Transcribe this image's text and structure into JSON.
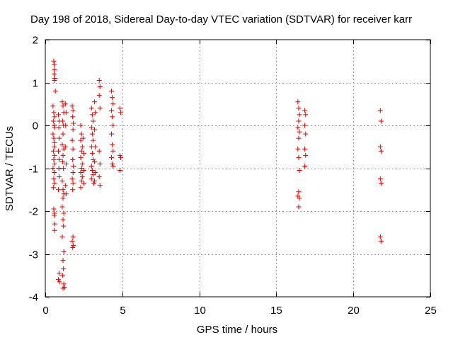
{
  "chart_data": {
    "type": "scatter",
    "title": "Day 198 of 2018, Sidereal Day-to-day VTEC variation (SDTVAR) for receiver karr",
    "xlabel": "GPS time / hours",
    "ylabel": "SDTVAR / TECUs",
    "xlim": [
      0,
      25
    ],
    "ylim": [
      -4,
      2
    ],
    "xticks": [
      0,
      5,
      10,
      15,
      20,
      25
    ],
    "yticks": [
      -4,
      -3,
      -2,
      -1,
      0,
      1,
      2
    ],
    "xtick_labels": [
      "0",
      "5",
      "10",
      "15",
      "20",
      "25"
    ],
    "ytick_labels": [
      "-4",
      "-3",
      "-2",
      "-1",
      "0",
      "1",
      "2"
    ],
    "grid": true,
    "marker": "+",
    "color": "#e00000",
    "series": [
      {
        "name": "SDTVAR",
        "points": [
          [
            0.55,
            1.5
          ],
          [
            0.58,
            1.42
          ],
          [
            0.6,
            1.3
          ],
          [
            0.57,
            1.2
          ],
          [
            0.62,
            1.1
          ],
          [
            0.6,
            1.05
          ],
          [
            0.65,
            0.8
          ],
          [
            0.5,
            0.45
          ],
          [
            0.55,
            0.3
          ],
          [
            0.6,
            0.2
          ],
          [
            0.52,
            0.1
          ],
          [
            0.58,
            0.0
          ],
          [
            0.6,
            -0.05
          ],
          [
            0.5,
            -0.2
          ],
          [
            0.55,
            -0.3
          ],
          [
            0.6,
            -0.4
          ],
          [
            0.58,
            -0.5
          ],
          [
            0.52,
            -0.6
          ],
          [
            0.6,
            -0.7
          ],
          [
            0.55,
            -0.8
          ],
          [
            0.6,
            -0.9
          ],
          [
            0.5,
            -1.0
          ],
          [
            0.58,
            -1.1
          ],
          [
            0.55,
            -1.25
          ],
          [
            0.6,
            -1.35
          ],
          [
            0.52,
            -1.45
          ],
          [
            0.55,
            -1.95
          ],
          [
            0.6,
            -2.05
          ],
          [
            0.58,
            -2.1
          ],
          [
            0.62,
            -2.3
          ],
          [
            0.6,
            -2.45
          ],
          [
            0.85,
            0.25
          ],
          [
            0.9,
            0.1
          ],
          [
            0.88,
            -0.05
          ],
          [
            0.9,
            -0.3
          ],
          [
            0.85,
            -0.6
          ],
          [
            0.9,
            -0.8
          ],
          [
            0.88,
            -1.0
          ],
          [
            0.9,
            -1.2
          ],
          [
            0.85,
            -1.5
          ],
          [
            0.9,
            -3.45
          ],
          [
            0.85,
            -3.6
          ],
          [
            0.92,
            -3.65
          ],
          [
            1.1,
            0.55
          ],
          [
            1.15,
            0.45
          ],
          [
            1.2,
            0.3
          ],
          [
            1.12,
            0.1
          ],
          [
            1.18,
            0.0
          ],
          [
            1.15,
            -0.2
          ],
          [
            1.1,
            -0.45
          ],
          [
            1.2,
            -0.55
          ],
          [
            1.15,
            -0.7
          ],
          [
            1.12,
            -0.85
          ],
          [
            1.18,
            -1.0
          ],
          [
            1.1,
            -1.3
          ],
          [
            1.15,
            -1.5
          ],
          [
            1.2,
            -1.6
          ],
          [
            1.15,
            -1.7
          ],
          [
            1.1,
            -1.9
          ],
          [
            1.2,
            -2.05
          ],
          [
            1.15,
            -2.2
          ],
          [
            1.18,
            -2.35
          ],
          [
            1.1,
            -2.6
          ],
          [
            1.2,
            -2.95
          ],
          [
            1.15,
            -3.15
          ],
          [
            1.18,
            -3.35
          ],
          [
            1.12,
            -3.5
          ],
          [
            1.2,
            -3.7
          ],
          [
            1.15,
            -3.8
          ],
          [
            1.25,
            -3.78
          ],
          [
            1.3,
            0.5
          ],
          [
            1.35,
            0.3
          ],
          [
            1.32,
            0.0
          ],
          [
            1.3,
            -0.5
          ],
          [
            1.35,
            -0.9
          ],
          [
            1.3,
            -1.4
          ],
          [
            1.35,
            -1.6
          ],
          [
            1.75,
            0.45
          ],
          [
            1.8,
            0.35
          ],
          [
            1.78,
            0.2
          ],
          [
            1.82,
            0.05
          ],
          [
            1.8,
            -0.1
          ],
          [
            1.75,
            -0.35
          ],
          [
            1.8,
            -0.55
          ],
          [
            1.78,
            -0.8
          ],
          [
            1.82,
            -0.95
          ],
          [
            1.8,
            -1.1
          ],
          [
            1.75,
            -1.25
          ],
          [
            1.8,
            -1.35
          ],
          [
            1.78,
            -1.5
          ],
          [
            1.8,
            -2.6
          ],
          [
            1.75,
            -2.7
          ],
          [
            1.82,
            -2.8
          ],
          [
            1.78,
            -2.85
          ],
          [
            2.3,
            0.0
          ],
          [
            2.35,
            -0.2
          ],
          [
            2.3,
            -0.35
          ],
          [
            2.4,
            -0.5
          ],
          [
            2.35,
            -0.6
          ],
          [
            2.3,
            -0.75
          ],
          [
            2.4,
            -0.9
          ],
          [
            2.35,
            -1.0
          ],
          [
            2.3,
            -1.1
          ],
          [
            2.4,
            -1.2
          ],
          [
            2.35,
            -1.3
          ],
          [
            2.3,
            -1.45
          ],
          [
            2.45,
            -0.3
          ],
          [
            2.5,
            -0.65
          ],
          [
            2.5,
            -1.05
          ],
          [
            2.5,
            -1.35
          ],
          [
            3.0,
            0.4
          ],
          [
            3.05,
            0.25
          ],
          [
            3.1,
            0.1
          ],
          [
            3.0,
            -0.05
          ],
          [
            3.05,
            -0.2
          ],
          [
            3.1,
            -0.35
          ],
          [
            3.0,
            -0.5
          ],
          [
            3.05,
            -0.65
          ],
          [
            3.1,
            -0.8
          ],
          [
            3.0,
            -0.95
          ],
          [
            3.05,
            -1.05
          ],
          [
            3.1,
            -1.15
          ],
          [
            3.0,
            -1.25
          ],
          [
            3.15,
            -1.35
          ],
          [
            3.2,
            0.55
          ],
          [
            3.25,
            0.3
          ],
          [
            3.2,
            -0.1
          ],
          [
            3.25,
            -0.5
          ],
          [
            3.2,
            -0.85
          ],
          [
            3.25,
            -1.1
          ],
          [
            3.2,
            -1.3
          ],
          [
            3.5,
            1.05
          ],
          [
            3.55,
            0.9
          ],
          [
            3.5,
            0.7
          ],
          [
            3.55,
            0.4
          ],
          [
            3.5,
            -0.6
          ],
          [
            3.55,
            -0.9
          ],
          [
            3.5,
            -1.2
          ],
          [
            3.55,
            -1.4
          ],
          [
            4.3,
            0.8
          ],
          [
            4.35,
            0.65
          ],
          [
            4.4,
            0.5
          ],
          [
            4.3,
            0.35
          ],
          [
            4.35,
            0.2
          ],
          [
            4.4,
            0.0
          ],
          [
            4.3,
            -0.2
          ],
          [
            4.35,
            -0.45
          ],
          [
            4.4,
            -0.6
          ],
          [
            4.3,
            -0.75
          ],
          [
            4.35,
            -0.9
          ],
          [
            4.4,
            -0.95
          ],
          [
            4.85,
            0.4
          ],
          [
            4.9,
            0.3
          ],
          [
            4.85,
            -0.7
          ],
          [
            4.9,
            -0.75
          ],
          [
            4.85,
            -1.05
          ],
          [
            16.4,
            0.55
          ],
          [
            16.45,
            0.4
          ],
          [
            16.5,
            0.25
          ],
          [
            16.45,
            0.1
          ],
          [
            16.4,
            -0.05
          ],
          [
            16.5,
            -0.15
          ],
          [
            16.45,
            -0.3
          ],
          [
            16.4,
            -0.55
          ],
          [
            16.45,
            -0.75
          ],
          [
            16.5,
            -1.05
          ],
          [
            16.45,
            -1.55
          ],
          [
            16.4,
            -1.65
          ],
          [
            16.5,
            -1.7
          ],
          [
            16.45,
            -1.9
          ],
          [
            16.85,
            0.35
          ],
          [
            16.9,
            0.25
          ],
          [
            16.85,
            0.0
          ],
          [
            16.9,
            -0.2
          ],
          [
            16.85,
            -0.55
          ],
          [
            16.9,
            -0.7
          ],
          [
            16.85,
            -0.95
          ],
          [
            21.75,
            0.35
          ],
          [
            21.8,
            0.1
          ],
          [
            21.75,
            -0.5
          ],
          [
            21.8,
            -0.6
          ],
          [
            21.75,
            -1.25
          ],
          [
            21.8,
            -1.35
          ],
          [
            21.75,
            -2.6
          ],
          [
            21.8,
            -2.7
          ]
        ]
      }
    ]
  }
}
